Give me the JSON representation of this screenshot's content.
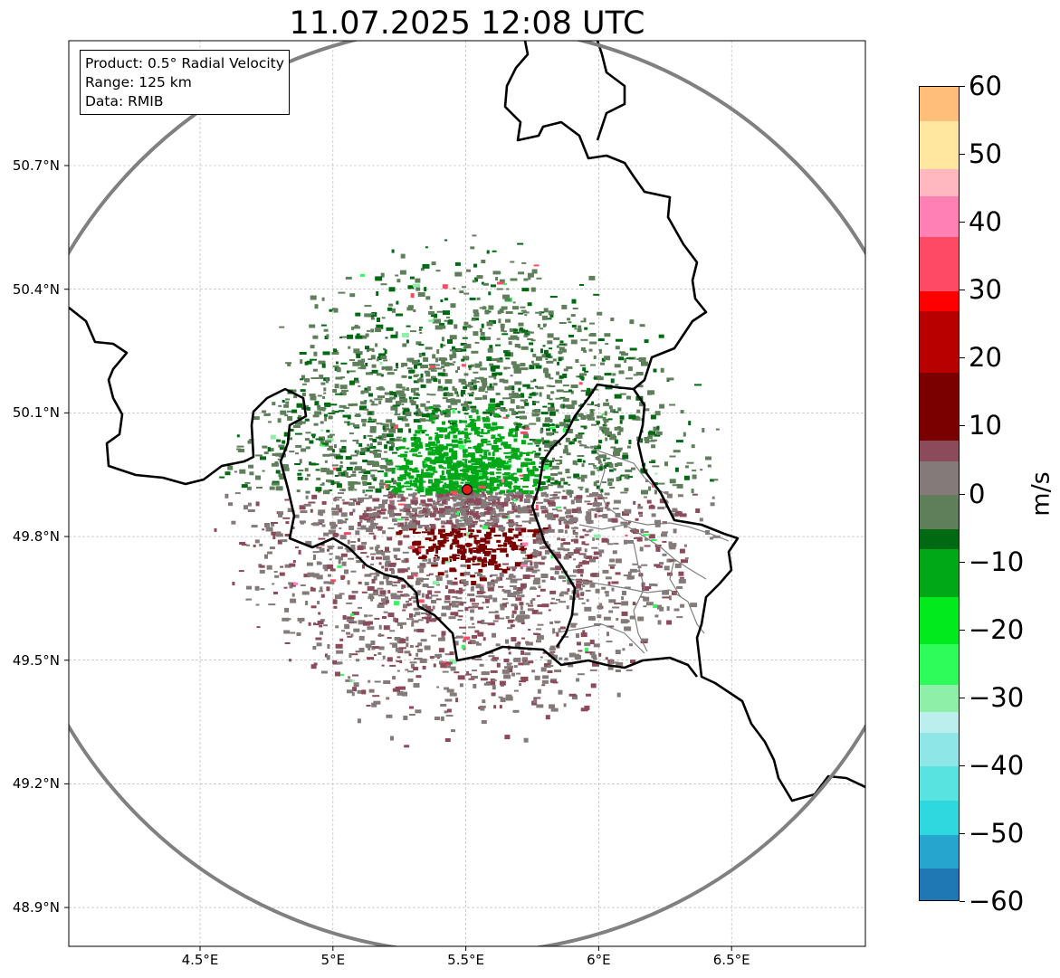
{
  "title": "11.07.2025 12:08 UTC",
  "info_box": {
    "product": "Product: 0.5° Radial Velocity",
    "range": "Range: 125 km",
    "data": "Data: RMIB"
  },
  "map": {
    "extent_lon": [
      4.0,
      7.0
    ],
    "extent_lat": [
      48.8,
      51.0
    ],
    "lat_ticks": [
      {
        "value": 50.7,
        "label": "50.7°N"
      },
      {
        "value": 50.4,
        "label": "50.4°N"
      },
      {
        "value": 50.1,
        "label": "50.1°N"
      },
      {
        "value": 49.8,
        "label": "49.8°N"
      },
      {
        "value": 49.5,
        "label": "49.5°N"
      },
      {
        "value": 49.2,
        "label": "49.2°N"
      },
      {
        "value": 48.9,
        "label": "48.9°N"
      }
    ],
    "lon_ticks": [
      {
        "value": 4.5,
        "label": "4.5°E"
      },
      {
        "value": 5.0,
        "label": "5°E"
      },
      {
        "value": 5.5,
        "label": "5.5°E"
      },
      {
        "value": 6.0,
        "label": "6°E"
      },
      {
        "value": 6.5,
        "label": "6.5°E"
      }
    ],
    "radar_site": {
      "lon": 5.505,
      "lat": 49.914
    },
    "range_ring_km": 125,
    "colors": {
      "border": "#000000",
      "admin": "#808080",
      "ring": "#808080",
      "grid": "#b0b0b0",
      "radar_marker": "#e41a1c"
    }
  },
  "colorbar": {
    "unit": "m/s",
    "min": -60,
    "max": 60,
    "ticks": [
      {
        "value": 60,
        "label": "60"
      },
      {
        "value": 50,
        "label": "50"
      },
      {
        "value": 40,
        "label": "40"
      },
      {
        "value": 30,
        "label": "30"
      },
      {
        "value": 20,
        "label": "20"
      },
      {
        "value": 10,
        "label": "10"
      },
      {
        "value": 0,
        "label": "0"
      },
      {
        "value": -10,
        "label": "−10"
      },
      {
        "value": -20,
        "label": "−20"
      },
      {
        "value": -30,
        "label": "−30"
      },
      {
        "value": -40,
        "label": "−40"
      },
      {
        "value": -50,
        "label": "−50"
      },
      {
        "value": -60,
        "label": "−60"
      }
    ],
    "stops": [
      {
        "value": -60,
        "color": "#1f77b4"
      },
      {
        "value": -55,
        "color": "#26a6cf"
      },
      {
        "value": -50,
        "color": "#2ed8de"
      },
      {
        "value": -45,
        "color": "#58e2e0"
      },
      {
        "value": -40,
        "color": "#8ee6e6"
      },
      {
        "value": -35,
        "color": "#bdeeee"
      },
      {
        "value": -32,
        "color": "#8ef0a8"
      },
      {
        "value": -28,
        "color": "#2dfc5a"
      },
      {
        "value": -22,
        "color": "#00ea1e"
      },
      {
        "value": -15,
        "color": "#00a818"
      },
      {
        "value": -8,
        "color": "#006a12"
      },
      {
        "value": -5,
        "color": "#5f7f5b"
      },
      {
        "value": 0,
        "color": "#857a7a"
      },
      {
        "value": 5,
        "color": "#8c4b5a"
      },
      {
        "value": 8,
        "color": "#7a0000"
      },
      {
        "value": 18,
        "color": "#b80000"
      },
      {
        "value": 27,
        "color": "#ff0000"
      },
      {
        "value": 30,
        "color": "#ff4a66"
      },
      {
        "value": 38,
        "color": "#ff80b4"
      },
      {
        "value": 44,
        "color": "#ffb8c0"
      },
      {
        "value": 48,
        "color": "#ffe7a0"
      },
      {
        "value": 55,
        "color": "#ffbe7a"
      },
      {
        "value": 60,
        "color": "#ff9a50"
      }
    ]
  },
  "velocity_field": {
    "center": {
      "lon": 5.5,
      "lat": 49.91
    },
    "approx_radius_deg_lon": 0.85,
    "approx_radius_deg_lat": 0.52,
    "north_side_mean_ms": -4,
    "core_north_ms": -12,
    "south_side_mean_ms": 4,
    "core_south_ms": 12
  }
}
